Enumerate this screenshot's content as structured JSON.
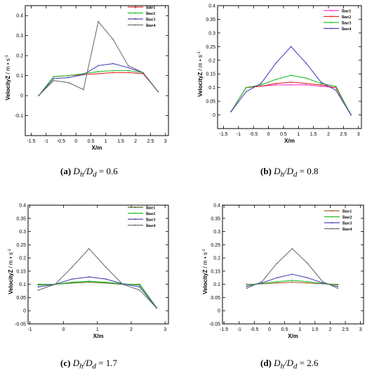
{
  "colors": {
    "line1": "#e0302a",
    "line2": "#22c02a",
    "line3": "#4b45b8",
    "line4": "#707070",
    "b_line1": "#ff33cc",
    "b_line2": "#e0302a",
    "b_line3": "#22c02a",
    "b_line4": "#4b45b8",
    "cd_line1": "#556b1e",
    "cd_line2": "#22c02a",
    "cd_line3": "#4b45b8",
    "cd_line4": "#707070",
    "d_line1": "#b06030"
  },
  "chart_data": [
    {
      "type": "line",
      "caption": {
        "letter": "(a)",
        "sym": "Dh/Dd",
        "sub1": "h",
        "sub2": "d",
        "value": "= 0.6"
      },
      "xlabel": "X/m",
      "ylabel": "VelocityZ",
      "yunit": "m • s",
      "yexp": "-1",
      "xlim": [
        -1.7,
        3.1
      ],
      "ylim": [
        -0.2,
        0.45
      ],
      "xticks": [
        -1.5,
        -1,
        -0.5,
        0,
        0.5,
        1,
        1.5,
        2,
        2.5,
        3
      ],
      "xtick_labels": [
        "-1.5",
        "-1",
        "-0.5",
        "0",
        "0.5",
        "1",
        "1.5",
        "2",
        "2.5",
        "3"
      ],
      "yticks": [
        -0.1,
        0,
        0.1,
        0.2,
        0.3,
        0.4
      ],
      "ytick_labels": [
        "-0.1",
        "0",
        "0.1",
        "0.2",
        "0.3",
        "0.4"
      ],
      "legend_position": "top-right",
      "series": [
        {
          "name": "line1",
          "color_key": "line1",
          "x": [
            -1.25,
            -0.75,
            -0.25,
            0.25,
            0.75,
            1.25,
            1.75,
            2.25,
            2.75
          ],
          "y": [
            0,
            0.095,
            0.1,
            0.105,
            0.11,
            0.115,
            0.115,
            0.11,
            0.02
          ]
        },
        {
          "name": "line2",
          "color_key": "line2",
          "x": [
            -1.25,
            -0.75,
            -0.25,
            0.25,
            0.75,
            1.25,
            1.75,
            2.25,
            2.75
          ],
          "y": [
            0,
            0.095,
            0.1,
            0.11,
            0.12,
            0.125,
            0.125,
            0.115,
            0.02
          ]
        },
        {
          "name": "line3",
          "color_key": "line3",
          "x": [
            -1.25,
            -0.75,
            -0.25,
            0.25,
            0.75,
            1.25,
            1.75,
            2.25,
            2.75
          ],
          "y": [
            0,
            0.085,
            0.09,
            0.105,
            0.15,
            0.16,
            0.14,
            0.115,
            0.02
          ]
        },
        {
          "name": "line4",
          "color_key": "line4",
          "x": [
            -1.25,
            -0.75,
            -0.25,
            0.25,
            0.75,
            1.25,
            1.75,
            2.25,
            2.75
          ],
          "y": [
            0,
            0.075,
            0.065,
            0.03,
            0.37,
            0.28,
            0.15,
            0.115,
            0.02
          ]
        }
      ]
    },
    {
      "type": "line",
      "caption": {
        "letter": "(b)",
        "sym": "Dh/Dd",
        "sub1": "h",
        "sub2": "d",
        "value": "= 0.8"
      },
      "xlabel": "X/m",
      "ylabel": "VelocityZ",
      "yunit": "m • s",
      "yexp": "-1",
      "xlim": [
        -1.7,
        3.1
      ],
      "ylim": [
        -0.05,
        0.4
      ],
      "xticks": [
        -1.5,
        -1,
        -0.5,
        0,
        0.5,
        1,
        1.5,
        2,
        2.5,
        3
      ],
      "xtick_labels": [
        "-1.5",
        "-1",
        "-0.5",
        "0",
        "0.5",
        "1",
        "1.5",
        "2",
        "2.5",
        "3"
      ],
      "yticks": [
        0,
        0.05,
        0.1,
        0.15,
        0.2,
        0.25,
        0.3,
        0.35,
        0.4
      ],
      "ytick_labels": [
        "0",
        "0.05",
        "0.1",
        "0.15",
        "0.2",
        "0.25",
        "0.3",
        "0.35",
        "0.4"
      ],
      "legend_position": "top-right",
      "series": [
        {
          "name": "line1",
          "color_key": "b_line1",
          "x": [
            -1.25,
            -0.75,
            -0.25,
            0.25,
            0.75,
            1.25,
            1.75,
            2.25,
            2.75
          ],
          "y": [
            0.012,
            0.1,
            0.105,
            0.11,
            0.11,
            0.11,
            0.105,
            0.1,
            0
          ]
        },
        {
          "name": "line2",
          "color_key": "b_line2",
          "x": [
            -1.25,
            -0.75,
            -0.25,
            0.25,
            0.75,
            1.25,
            1.75,
            2.25,
            2.75
          ],
          "y": [
            0.012,
            0.1,
            0.105,
            0.115,
            0.12,
            0.115,
            0.11,
            0.1,
            0
          ]
        },
        {
          "name": "line3",
          "color_key": "b_line3",
          "x": [
            -1.25,
            -0.75,
            -0.25,
            0.25,
            0.75,
            1.25,
            1.75,
            2.25,
            2.75
          ],
          "y": [
            0.012,
            0.1,
            0.11,
            0.13,
            0.145,
            0.135,
            0.115,
            0.105,
            0
          ]
        },
        {
          "name": "line4",
          "color_key": "b_line4",
          "x": [
            -1.25,
            -0.75,
            -0.25,
            0.25,
            0.75,
            1.25,
            1.75,
            2.25,
            2.75
          ],
          "y": [
            0.012,
            0.085,
            0.115,
            0.19,
            0.25,
            0.19,
            0.12,
            0.09,
            0
          ]
        }
      ]
    },
    {
      "type": "line",
      "caption": {
        "letter": "(c)",
        "sym": "Dh/Dd",
        "sub1": "h",
        "sub2": "d",
        "value": "= 1.7"
      },
      "xlabel": "X/m",
      "ylabel": "VelocityZ",
      "yunit": "m • s",
      "yexp": "-1",
      "xlim": [
        -1.05,
        3.1
      ],
      "ylim": [
        -0.05,
        0.4
      ],
      "xticks": [
        -1,
        0,
        1,
        2,
        3
      ],
      "xtick_labels": [
        "-1",
        "0",
        "1",
        "2",
        "3"
      ],
      "yticks": [
        -0.05,
        0,
        0.05,
        0.1,
        0.15,
        0.2,
        0.25,
        0.3,
        0.35,
        0.4
      ],
      "ytick_labels": [
        "-0.05",
        "0",
        "0.05",
        "0.1",
        "0.15",
        "0.2",
        "0.25",
        "0.3",
        "0.35",
        "0.4"
      ],
      "legend_position": "top-right",
      "series": [
        {
          "name": "line1",
          "color_key": "cd_line1",
          "x": [
            -0.75,
            -0.25,
            0.25,
            0.75,
            1.25,
            1.75,
            2.25,
            2.75
          ],
          "y": [
            0.1,
            0.1,
            0.105,
            0.108,
            0.105,
            0.1,
            0.1,
            0.012
          ]
        },
        {
          "name": "line2",
          "color_key": "cd_line2",
          "x": [
            -0.75,
            -0.25,
            0.25,
            0.75,
            1.25,
            1.75,
            2.25,
            2.75
          ],
          "y": [
            0.097,
            0.1,
            0.108,
            0.112,
            0.108,
            0.102,
            0.097,
            0.012
          ]
        },
        {
          "name": "line3",
          "color_key": "cd_line3",
          "x": [
            -0.75,
            -0.25,
            0.25,
            0.75,
            1.25,
            1.75,
            2.25,
            2.75
          ],
          "y": [
            0.09,
            0.1,
            0.12,
            0.128,
            0.12,
            0.102,
            0.09,
            0.01
          ]
        },
        {
          "name": "line4",
          "color_key": "cd_line4",
          "x": [
            -0.75,
            -0.25,
            0.25,
            0.75,
            1.25,
            1.75,
            2.25,
            2.75
          ],
          "y": [
            0.078,
            0.1,
            0.165,
            0.235,
            0.165,
            0.1,
            0.078,
            0.01
          ]
        }
      ]
    },
    {
      "type": "line",
      "caption": {
        "letter": "(d)",
        "sym": "Dh/Dd",
        "sub1": "h",
        "sub2": "d",
        "value": "= 2.6"
      },
      "xlabel": "X/m",
      "ylabel": "VelocityZ",
      "yunit": "m • s",
      "yexp": "-1",
      "xlim": [
        -1.55,
        3.1
      ],
      "ylim": [
        -0.05,
        0.4
      ],
      "xticks": [
        -1.5,
        -1,
        -0.5,
        0,
        0.5,
        1,
        1.5,
        2,
        2.5,
        3
      ],
      "xtick_labels": [
        "-1.5",
        "-1",
        "-0.5",
        "0",
        "0.5",
        "1",
        "1.5",
        "2",
        "2.5",
        "3"
      ],
      "yticks": [
        -0.05,
        0,
        0.05,
        0.1,
        0.15,
        0.2,
        0.25,
        0.3,
        0.35,
        0.4
      ],
      "ytick_labels": [
        "-0.05",
        "0",
        "0.05",
        "0.1",
        "0.15",
        "0.2",
        "0.25",
        "0.3",
        "0.35",
        "0.4"
      ],
      "legend_position": "top-right",
      "series": [
        {
          "name": "line1",
          "color_key": "d_line1",
          "x": [
            -0.75,
            -0.25,
            0.25,
            0.75,
            1.25,
            1.75,
            2.25
          ],
          "y": [
            0.1,
            0.102,
            0.105,
            0.108,
            0.105,
            0.102,
            0.1
          ]
        },
        {
          "name": "line2",
          "color_key": "cd_line2",
          "x": [
            -0.75,
            -0.25,
            0.25,
            0.75,
            1.25,
            1.75,
            2.25
          ],
          "y": [
            0.098,
            0.103,
            0.11,
            0.115,
            0.11,
            0.103,
            0.098
          ]
        },
        {
          "name": "line3",
          "color_key": "cd_line3",
          "x": [
            -0.75,
            -0.25,
            0.25,
            0.75,
            1.25,
            1.75,
            2.25
          ],
          "y": [
            0.092,
            0.105,
            0.125,
            0.138,
            0.125,
            0.105,
            0.092
          ]
        },
        {
          "name": "line4",
          "color_key": "cd_line4",
          "x": [
            -0.75,
            -0.25,
            0.25,
            0.75,
            1.25,
            1.75,
            2.25
          ],
          "y": [
            0.085,
            0.11,
            0.18,
            0.235,
            0.18,
            0.11,
            0.085
          ]
        }
      ]
    }
  ]
}
